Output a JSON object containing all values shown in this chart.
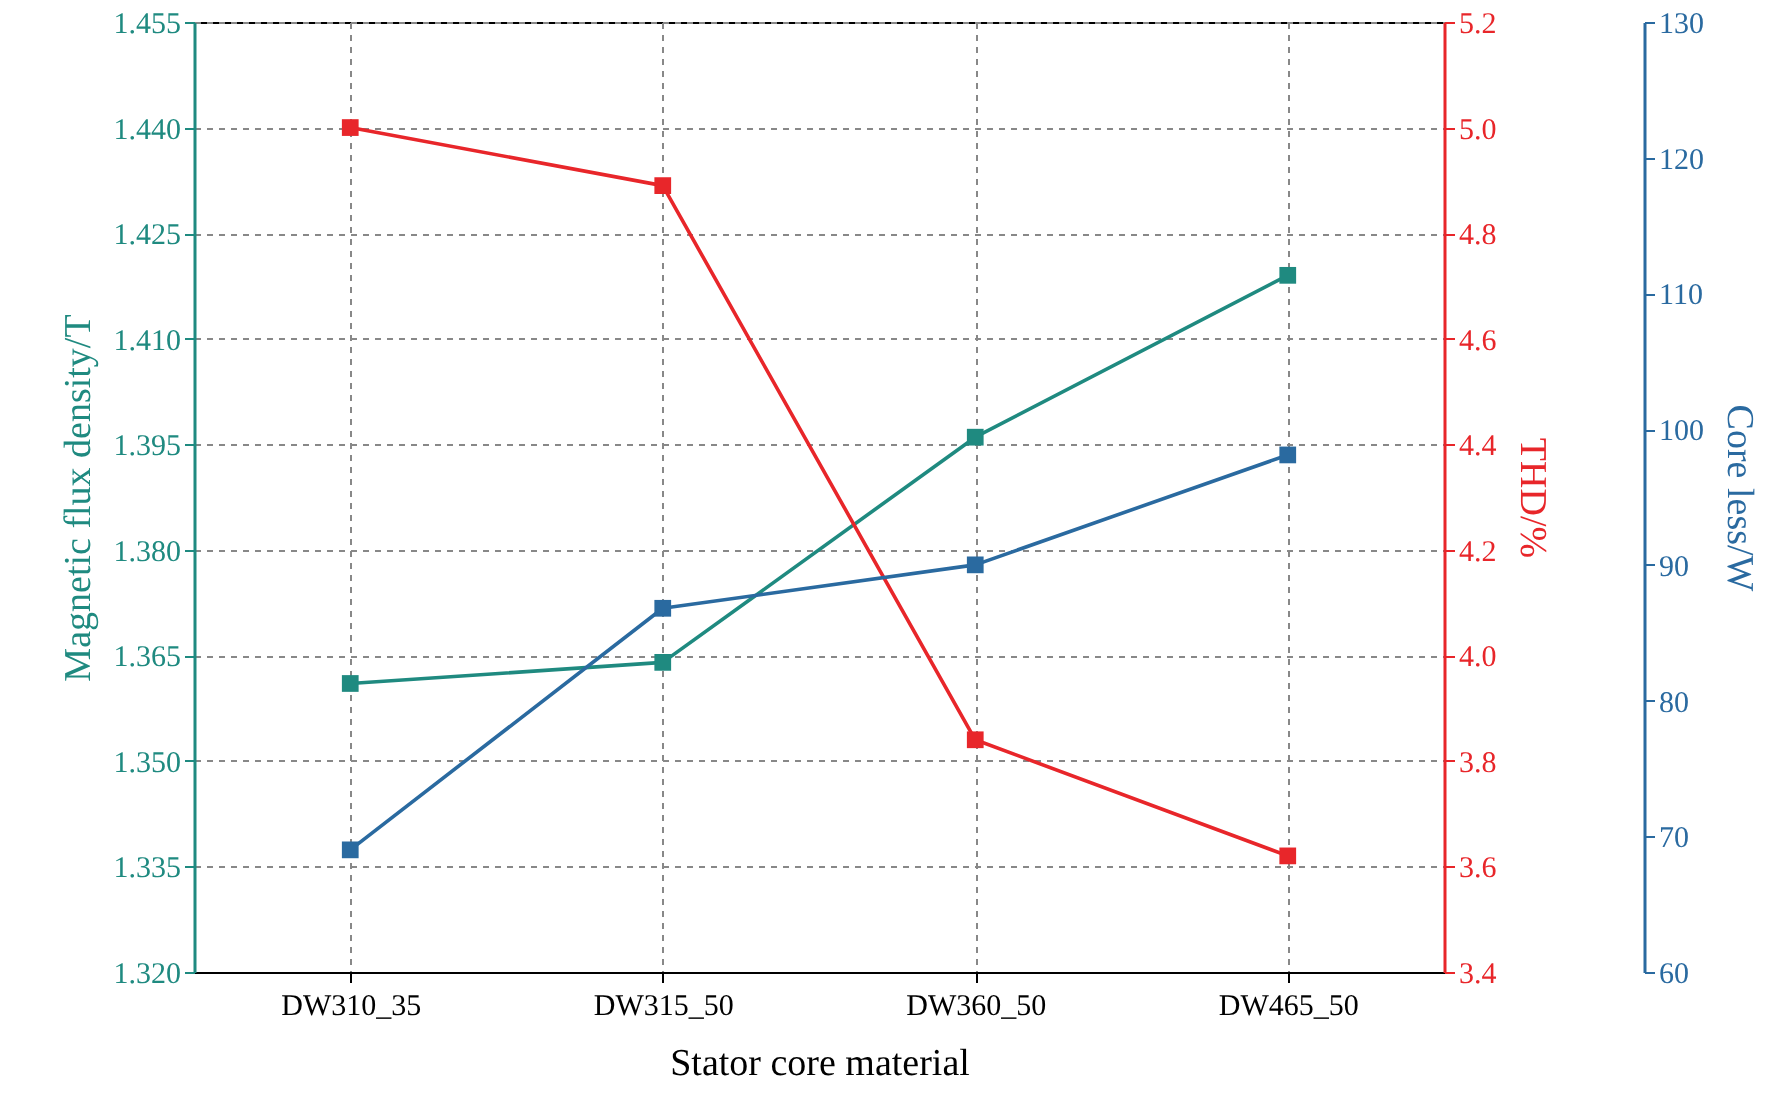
{
  "chart_data": {
    "type": "line",
    "xlabel": "Stator core material",
    "ylabel": "Magnetic flux density/T",
    "y2label": "THD/%",
    "y3label": "Core less/W",
    "categories": [
      "DW310_35",
      "DW315_50",
      "DW360_50",
      "DW465_50"
    ],
    "series": [
      {
        "color": "#1f8a80",
        "values": [
          1.361,
          1.364,
          1.396,
          1.419
        ]
      },
      {
        "color": "#e8262a",
        "values": [
          5.0,
          4.89,
          3.84,
          3.62
        ],
        "axis": "y2"
      },
      {
        "color": "#2a6aa0",
        "values": [
          69,
          86.8,
          90,
          98.1
        ],
        "axis": "y3"
      }
    ],
    "ylim": [
      1.32,
      1.455
    ],
    "yticks": [
      {
        "value": 1.32,
        "label": "1.320"
      },
      1.335,
      {
        "value": 1.35,
        "label": "1.350"
      },
      1.365,
      {
        "value": 1.38,
        "label": "1.380"
      },
      1.395,
      {
        "value": 1.41,
        "label": "1.410"
      },
      1.425,
      {
        "value": 1.44,
        "label": "1.440"
      },
      1.455
    ],
    "y2lim": [
      3.4,
      5.2
    ],
    "y2ticks": [
      3.4,
      3.6,
      3.8,
      {
        "value": 4,
        "label": "4.0"
      },
      4.2,
      4.4,
      4.6,
      4.8,
      {
        "value": 5,
        "label": "5.0"
      },
      5.2
    ],
    "y3lim": [
      60,
      130
    ],
    "y3ticks": [
      60,
      70,
      80,
      90,
      100,
      110,
      120,
      130
    ],
    "grid": true,
    "marker": "square",
    "line_style": "solid"
  }
}
